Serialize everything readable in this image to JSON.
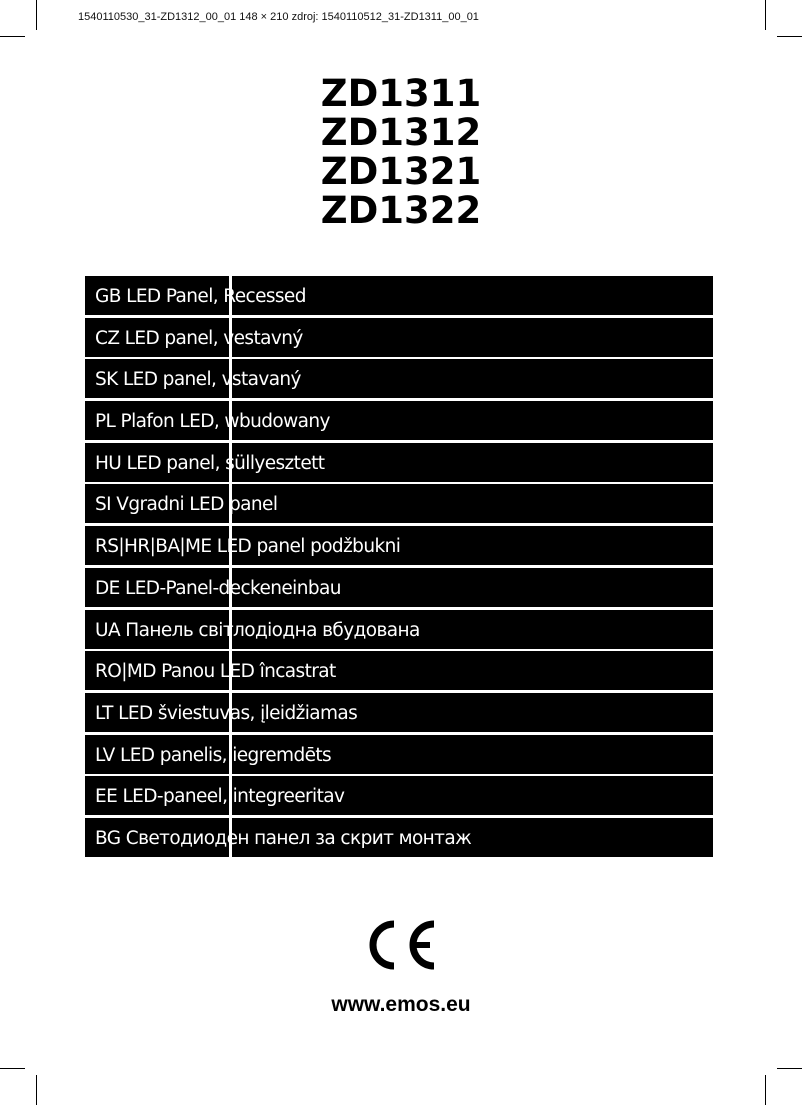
{
  "print_info": "1540110530_31-ZD1312_00_01  148 × 210 zdroj: 1540110512_31-ZD1311_00_01",
  "models": [
    "ZD1311",
    "ZD1312",
    "ZD1321",
    "ZD1322"
  ],
  "product_names": [
    "GB LED Panel, Recessed",
    "CZ LED panel, vestavný",
    "SK LED panel, vstavaný",
    "PL Plafon LED, wbudowany",
    "HU LED panel, süllyesztett",
    "SI Vgradni LED panel",
    "RS|HR|BA|ME LED panel podžbukni",
    "DE LED-Panel-deckeneinbau",
    "UA Панель світлодіодна вбудована",
    "RO|MD Panou LED încastrat",
    "LT LED šviestuvas, įleidžiamas",
    "LV LED panelis, iegremdēts",
    "EE LED-paneel, integreeritav",
    "BG Светодиоден панел за скрит монтаж"
  ],
  "certification_mark": "CE",
  "website": "www.emos.eu",
  "colors": {
    "bar": "#000000",
    "bar_text": "#ffffff"
  }
}
